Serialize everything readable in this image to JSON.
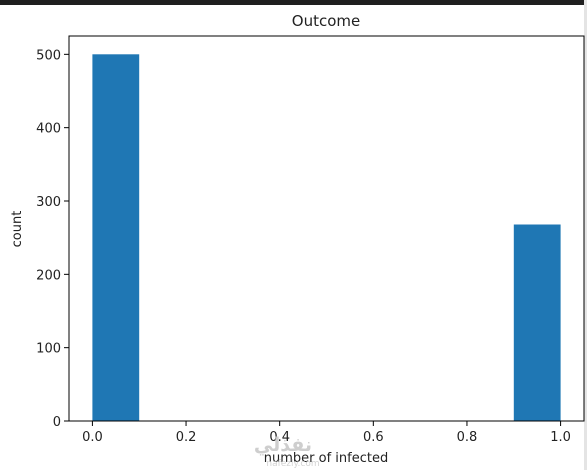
{
  "chart_data": {
    "type": "bar",
    "title": "Outcome",
    "xlabel": "number of infected",
    "ylabel": "count",
    "bins": [
      {
        "x0": 0.0,
        "x1": 0.1,
        "value": 500
      },
      {
        "x0": 0.9,
        "x1": 1.0,
        "value": 268
      }
    ],
    "xlim": [
      -0.05,
      1.05
    ],
    "ylim": [
      0,
      525
    ],
    "xticks": [
      0.0,
      0.2,
      0.4,
      0.6,
      0.8,
      1.0
    ],
    "xtick_labels": [
      "0.0",
      "0.2",
      "0.4",
      "0.6",
      "0.8",
      "1.0"
    ],
    "yticks": [
      0,
      100,
      200,
      300,
      400,
      500
    ],
    "ytick_labels": [
      "0",
      "100",
      "200",
      "300",
      "400",
      "500"
    ],
    "bar_color": "#1f77b4",
    "grid": false,
    "legend": "none"
  },
  "watermark": {
    "text": "نفذلي",
    "sub": "nafezly.com"
  }
}
